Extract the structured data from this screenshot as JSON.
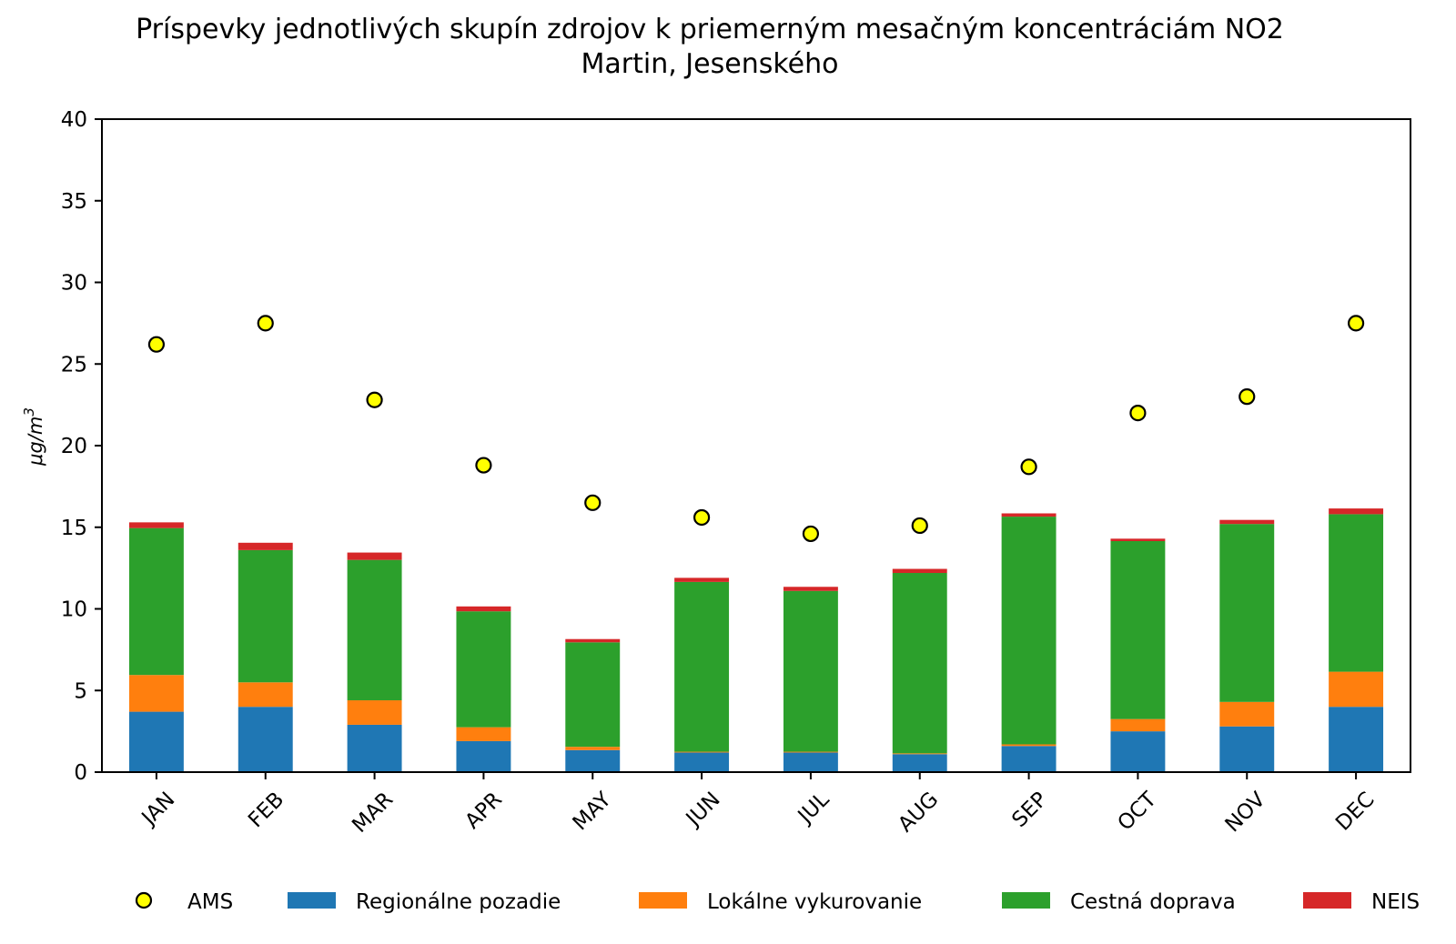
{
  "chart_data": {
    "type": "bar",
    "stacked": true,
    "title": "Príspevky jednotlivých skupín zdrojov k priemerným mesačným koncentráciám NO2",
    "subtitle": "Martin, Jesenského",
    "xlabel": "",
    "ylabel": "μg/m3",
    "ylim": [
      0,
      40
    ],
    "yticks": [
      0,
      5,
      10,
      15,
      20,
      25,
      30,
      35,
      40
    ],
    "grid": false,
    "legend_position": "bottom",
    "categories": [
      "JAN",
      "FEB",
      "MAR",
      "APR",
      "MAY",
      "JUN",
      "JUL",
      "AUG",
      "SEP",
      "OCT",
      "NOV",
      "DEC"
    ],
    "series": [
      {
        "name": "Regionálne pozadie",
        "color": "#1f77b4",
        "values": [
          3.7,
          4.0,
          2.9,
          1.9,
          1.35,
          1.2,
          1.2,
          1.1,
          1.6,
          2.5,
          2.8,
          4.0
        ]
      },
      {
        "name": "Lokálne vykurovanie",
        "color": "#ff7f0e",
        "values": [
          2.25,
          1.5,
          1.5,
          0.85,
          0.2,
          0.05,
          0.05,
          0.05,
          0.1,
          0.75,
          1.5,
          2.15
        ]
      },
      {
        "name": "Cestná doprava",
        "color": "#2ca02c",
        "values": [
          9.0,
          8.1,
          8.6,
          7.1,
          6.4,
          10.4,
          9.85,
          11.05,
          13.95,
          10.9,
          10.9,
          9.65
        ]
      },
      {
        "name": "NEIS",
        "color": "#d62728",
        "values": [
          0.35,
          0.45,
          0.45,
          0.3,
          0.2,
          0.25,
          0.25,
          0.25,
          0.2,
          0.15,
          0.25,
          0.35
        ]
      }
    ],
    "points": {
      "name": "AMS",
      "color": "#ffff00",
      "edgecolor": "#000000",
      "values": [
        26.2,
        27.5,
        22.8,
        18.8,
        16.5,
        15.6,
        14.6,
        15.1,
        18.7,
        22.0,
        23.0,
        27.5
      ]
    }
  }
}
